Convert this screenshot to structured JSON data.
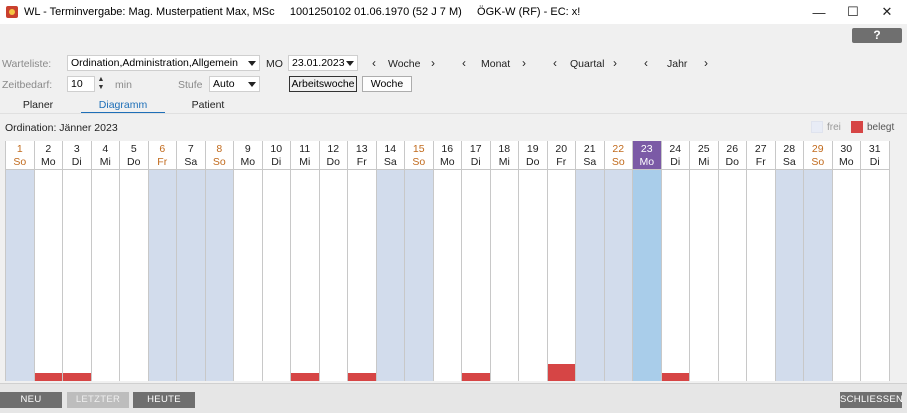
{
  "window": {
    "title": "WL - Terminvergabe: Mag. Musterpatient Max, MSc     1001250102 01.06.1970 (52 J 7 M)     ÖGK-W (RF) - EC: x!",
    "minimize": "—",
    "maximize": "☐",
    "close": "✕"
  },
  "help_label": "?",
  "filters": {
    "warteliste_label": "Warteliste:",
    "warteliste_value": "Ordination,Administration,Allgemein",
    "weekday": "MO",
    "date_value": "23.01.2023",
    "zeitbedarf_label": "Zeitbedarf:",
    "zeitbedarf_value": "10",
    "min_label": "min",
    "stufe_label": "Stufe",
    "stufe_value": "Auto",
    "arbeitswoche_label": "Arbeitswoche",
    "woche_btn_label": "Woche"
  },
  "nav": {
    "prev": "‹",
    "next": "›",
    "woche": "Woche",
    "monat": "Monat",
    "quartal": "Quartal",
    "jahr": "Jahr"
  },
  "tabs": [
    "Planer",
    "Diagramm",
    "Patient"
  ],
  "active_tab": "Diagramm",
  "ordination_label": "Ordination: Jänner 2023",
  "legend": {
    "frei": "frei",
    "belegt": "belegt"
  },
  "colors": {
    "belegt": "#d64545",
    "weekend": "#d2dcec",
    "today": "#a9cdea",
    "today_header": "#7b5aa6",
    "sunday_text": "#c16a1c"
  },
  "days": [
    {
      "num": "1",
      "wd": "So",
      "type": "sun",
      "booked": 0
    },
    {
      "num": "2",
      "wd": "Mo",
      "type": "wd",
      "booked": 0.04
    },
    {
      "num": "3",
      "wd": "Di",
      "type": "wd",
      "booked": 0.04
    },
    {
      "num": "4",
      "wd": "Mi",
      "type": "wd",
      "booked": 0
    },
    {
      "num": "5",
      "wd": "Do",
      "type": "wd",
      "booked": 0
    },
    {
      "num": "6",
      "wd": "Fr",
      "type": "hol",
      "booked": 0
    },
    {
      "num": "7",
      "wd": "Sa",
      "type": "sat",
      "booked": 0
    },
    {
      "num": "8",
      "wd": "So",
      "type": "sun",
      "booked": 0
    },
    {
      "num": "9",
      "wd": "Mo",
      "type": "wd",
      "booked": 0
    },
    {
      "num": "10",
      "wd": "Di",
      "type": "wd",
      "booked": 0
    },
    {
      "num": "11",
      "wd": "Mi",
      "type": "wd",
      "booked": 0.04
    },
    {
      "num": "12",
      "wd": "Do",
      "type": "wd",
      "booked": 0
    },
    {
      "num": "13",
      "wd": "Fr",
      "type": "wd",
      "booked": 0.04
    },
    {
      "num": "14",
      "wd": "Sa",
      "type": "sat",
      "booked": 0
    },
    {
      "num": "15",
      "wd": "So",
      "type": "sun",
      "booked": 0
    },
    {
      "num": "16",
      "wd": "Mo",
      "type": "wd",
      "booked": 0
    },
    {
      "num": "17",
      "wd": "Di",
      "type": "wd",
      "booked": 0.04
    },
    {
      "num": "18",
      "wd": "Mi",
      "type": "wd",
      "booked": 0
    },
    {
      "num": "19",
      "wd": "Do",
      "type": "wd",
      "booked": 0
    },
    {
      "num": "20",
      "wd": "Fr",
      "type": "wd",
      "booked": 0.08
    },
    {
      "num": "21",
      "wd": "Sa",
      "type": "sat",
      "booked": 0
    },
    {
      "num": "22",
      "wd": "So",
      "type": "sun",
      "booked": 0
    },
    {
      "num": "23",
      "wd": "Mo",
      "type": "today",
      "booked": 0
    },
    {
      "num": "24",
      "wd": "Di",
      "type": "wd",
      "booked": 0.04
    },
    {
      "num": "25",
      "wd": "Mi",
      "type": "wd",
      "booked": 0
    },
    {
      "num": "26",
      "wd": "Do",
      "type": "wd",
      "booked": 0
    },
    {
      "num": "27",
      "wd": "Fr",
      "type": "wd",
      "booked": 0
    },
    {
      "num": "28",
      "wd": "Sa",
      "type": "sat",
      "booked": 0
    },
    {
      "num": "29",
      "wd": "So",
      "type": "sun",
      "booked": 0
    },
    {
      "num": "30",
      "wd": "Mo",
      "type": "wd",
      "booked": 0
    },
    {
      "num": "31",
      "wd": "Di",
      "type": "wd",
      "booked": 0
    }
  ],
  "footer": {
    "neu": "NEU",
    "letzter": "LETZTER",
    "heute": "HEUTE",
    "schliessen": "SCHLIESSEN"
  }
}
